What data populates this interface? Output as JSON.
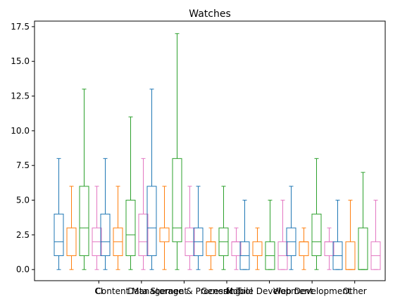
{
  "chart_data": {
    "type": "box",
    "title": "Watches",
    "xlabel": "",
    "ylabel": "",
    "ylim": [
      -0.8,
      17.9
    ],
    "yticks": [
      0.0,
      2.5,
      5.0,
      7.5,
      10.0,
      12.5,
      15.0,
      17.5
    ],
    "ytick_labels": [
      "0.0",
      "2.5",
      "5.0",
      "7.5",
      "10.0",
      "12.5",
      "15.0",
      "17.5"
    ],
    "categories": [
      "CI",
      "Content Management",
      "Data Storage & Processing",
      "Generic Tool",
      "Mobile Development",
      "Web Development",
      "Other"
    ],
    "series_colors": [
      "#1f77b4",
      "#ff7f0e",
      "#2ca02c",
      "#e377c2"
    ],
    "groups": [
      {
        "category": "CI",
        "boxes": [
          {
            "whislo": 0,
            "q1": 1,
            "med": 2,
            "q3": 4,
            "whishi": 8
          },
          {
            "whislo": 0,
            "q1": 1,
            "med": 3,
            "q3": 3,
            "whishi": 6
          },
          {
            "whislo": 0,
            "q1": 1,
            "med": 3,
            "q3": 6,
            "whishi": 13
          },
          {
            "whislo": 0,
            "q1": 1,
            "med": 2,
            "q3": 3,
            "whishi": 6
          }
        ]
      },
      {
        "category": "Content Management",
        "boxes": [
          {
            "whislo": 0,
            "q1": 1,
            "med": 2,
            "q3": 4,
            "whishi": 8
          },
          {
            "whislo": 0,
            "q1": 1,
            "med": 2,
            "q3": 3,
            "whishi": 6
          },
          {
            "whislo": 0,
            "q1": 1,
            "med": 2.5,
            "q3": 5,
            "whishi": 11
          },
          {
            "whislo": 0,
            "q1": 1,
            "med": 2,
            "q3": 4,
            "whishi": 8
          }
        ]
      },
      {
        "category": "Data Storage & Processing",
        "boxes": [
          {
            "whislo": 0,
            "q1": 1,
            "med": 3,
            "q3": 6,
            "whishi": 13
          },
          {
            "whislo": 0,
            "q1": 2,
            "med": 3,
            "q3": 3,
            "whishi": 6
          },
          {
            "whislo": 0,
            "q1": 2,
            "med": 3,
            "q3": 8,
            "whishi": 17
          },
          {
            "whislo": 0,
            "q1": 1,
            "med": 2,
            "q3": 3,
            "whishi": 6
          }
        ]
      },
      {
        "category": "Generic Tool",
        "boxes": [
          {
            "whislo": 0,
            "q1": 1,
            "med": 2,
            "q3": 3,
            "whishi": 6
          },
          {
            "whislo": 0,
            "q1": 1,
            "med": 2,
            "q3": 2,
            "whishi": 3
          },
          {
            "whislo": 0,
            "q1": 1,
            "med": 2,
            "q3": 3,
            "whishi": 6
          },
          {
            "whislo": 0,
            "q1": 1,
            "med": 2,
            "q3": 2,
            "whishi": 3
          }
        ]
      },
      {
        "category": "Mobile Development",
        "boxes": [
          {
            "whislo": 0,
            "q1": 0,
            "med": 1,
            "q3": 2,
            "whishi": 5
          },
          {
            "whislo": 0,
            "q1": 1,
            "med": 1,
            "q3": 2,
            "whishi": 3
          },
          {
            "whislo": 0,
            "q1": 0,
            "med": 1,
            "q3": 2,
            "whishi": 5
          },
          {
            "whislo": 0,
            "q1": 0,
            "med": 1,
            "q3": 2,
            "whishi": 5
          }
        ]
      },
      {
        "category": "Web Development",
        "boxes": [
          {
            "whislo": 0,
            "q1": 1,
            "med": 2,
            "q3": 3,
            "whishi": 6
          },
          {
            "whislo": 0,
            "q1": 1,
            "med": 2,
            "q3": 2,
            "whishi": 3
          },
          {
            "whislo": 0,
            "q1": 1,
            "med": 2,
            "q3": 4,
            "whishi": 8
          },
          {
            "whislo": 0,
            "q1": 1,
            "med": 2,
            "q3": 2,
            "whishi": 3
          }
        ]
      },
      {
        "category": "Other",
        "boxes": [
          {
            "whislo": 0,
            "q1": 0,
            "med": 1,
            "q3": 2,
            "whishi": 5
          },
          {
            "whislo": 0,
            "q1": 0,
            "med": 0,
            "q3": 2,
            "whishi": 5
          },
          {
            "whislo": 0,
            "q1": 0,
            "med": 0,
            "q3": 3,
            "whishi": 7
          },
          {
            "whislo": 0,
            "q1": 0,
            "med": 1,
            "q3": 2,
            "whishi": 5
          }
        ]
      }
    ]
  }
}
